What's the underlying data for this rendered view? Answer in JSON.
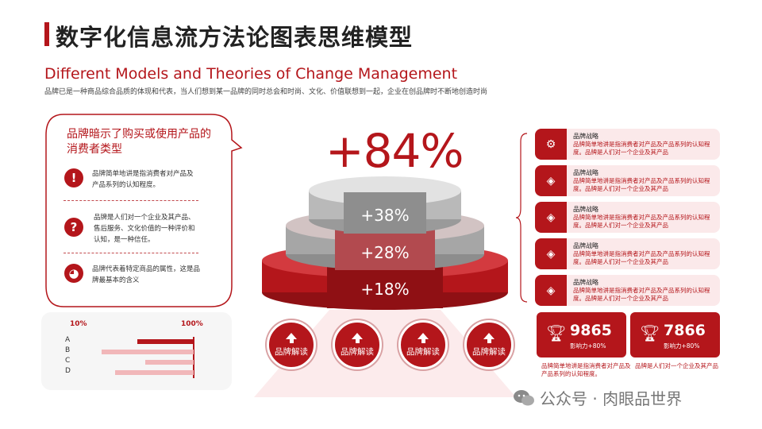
{
  "header": {
    "title": "数字化信息流方法论图表思维模型",
    "subtitle": "Different Models and Theories of Change Management",
    "description": "品牌已是一种商品综合品质的体现和代表，当人们想到某一品牌的同时总会和时尚、文化、价值联想到一起，企业在创品牌时不断地创造时尚"
  },
  "bubble": {
    "title": "品牌暗示了购买或使用产品的消费者类型",
    "items": [
      {
        "icon": "exclamation-icon",
        "glyph": "!",
        "text": "品牌简单地讲是指消费者对产品及产品系列的认知程度。"
      },
      {
        "icon": "question-icon",
        "glyph": "?",
        "text": "品牌是人们对一个企业及其产品、售后服务、文化价值的一种评价和认知，是一种信任。"
      },
      {
        "icon": "globe-icon",
        "glyph": "◕",
        "text": "品牌代表着特定商品的属性，这是品牌最基本的含义"
      }
    ]
  },
  "bar_chart": {
    "left_label": "10%",
    "right_label": "100%",
    "rows": [
      {
        "letter": "A",
        "dark": 0.42,
        "light": 0.0
      },
      {
        "letter": "B",
        "dark": 0.0,
        "light": 0.68
      },
      {
        "letter": "C",
        "dark": 0.0,
        "light": 0.36
      },
      {
        "letter": "D",
        "dark": 0.0,
        "light": 0.58
      }
    ],
    "colors": {
      "dark": "#b4161b",
      "light": "#f1b7b9"
    }
  },
  "pyramid": {
    "headline": "+84%",
    "tiers": [
      "+38%",
      "+28%",
      "+18%"
    ]
  },
  "buttons": [
    {
      "label": "品牌解读"
    },
    {
      "label": "品牌解读"
    },
    {
      "label": "品牌解读"
    },
    {
      "label": "品牌解读"
    }
  ],
  "cards": [
    {
      "icon": "gears-icon",
      "glyph": "⚙",
      "title": "品牌战略",
      "text": "品牌简单地讲是指消费者对产品及产品系列的认知程度。品牌是人们对一个企业及其产品"
    },
    {
      "icon": "diamond-icon",
      "glyph": "◈",
      "title": "品牌战略",
      "text": "品牌简单地讲是指消费者对产品及产品系列的认知程度。品牌是人们对一个企业及其产品"
    },
    {
      "icon": "diamond-icon",
      "glyph": "◈",
      "title": "品牌战略",
      "text": "品牌简单地讲是指消费者对产品及产品系列的认知程度。品牌是人们对一个企业及其产品"
    },
    {
      "icon": "diamond-icon",
      "glyph": "◈",
      "title": "品牌战略",
      "text": "品牌简单地讲是指消费者对产品及产品系列的认知程度。品牌是人们对一个企业及其产品"
    },
    {
      "icon": "diamond-icon",
      "glyph": "◈",
      "title": "品牌战略",
      "text": "品牌简单地讲是指消费者对产品及产品系列的认知程度。品牌是人们对一个企业及其产品"
    }
  ],
  "stats": [
    {
      "value": "9865",
      "sub": "影响力+80%",
      "desc": "品牌简单地讲是指消费者对产品及产品系列的认知程度。"
    },
    {
      "value": "7866",
      "sub": "影响力+80%",
      "desc": "品牌是人们对一个企业及其产品"
    }
  ],
  "watermark": "公众号 · 肉眼品世界",
  "colors": {
    "accent": "#b4161b",
    "pink": "#fbe9ea",
    "gray": "#b9b9b9"
  }
}
